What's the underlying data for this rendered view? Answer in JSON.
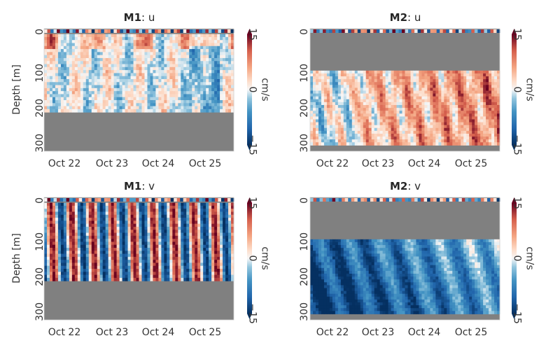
{
  "figure": {
    "palette": {
      "mask": "#808080",
      "neg": "#0b4a8f",
      "mid": "#f7f7f7",
      "pos": "#8a0a1f"
    }
  },
  "chart_data": [
    {
      "type": "heatmap",
      "title_bold": "M1",
      "title_rest": ": u",
      "ylabel": "Depth [m]",
      "x_ticks": [
        "Oct 22",
        "Oct 23",
        "Oct 24",
        "Oct 25"
      ],
      "y_ticks": [
        "0",
        "100",
        "200",
        "300"
      ],
      "ylim": [
        345,
        0
      ],
      "valid_depth": [
        15,
        235
      ],
      "pattern": "weak_u",
      "colorbar": {
        "min": -15,
        "max": 15,
        "ticks": [
          "15",
          "0",
          "−15"
        ],
        "label": "cm/s"
      }
    },
    {
      "type": "heatmap",
      "title_bold": "M2",
      "title_rest": ": u",
      "ylabel": "",
      "x_ticks": [
        "Oct 22",
        "Oct 23",
        "Oct 24",
        "Oct 25"
      ],
      "y_ticks": [
        "0",
        "100",
        "200",
        "300"
      ],
      "ylim": [
        345,
        0
      ],
      "valid_depth": [
        118,
        328
      ],
      "pattern": "pos_u",
      "colorbar": {
        "min": -15,
        "max": 15,
        "ticks": [
          "15",
          "0",
          "−15"
        ],
        "label": "cm/s"
      }
    },
    {
      "type": "heatmap",
      "title_bold": "M1",
      "title_rest": ": v",
      "ylabel": "Depth [m]",
      "x_ticks": [
        "Oct 22",
        "Oct 23",
        "Oct 24",
        "Oct 25"
      ],
      "y_ticks": [
        "0",
        "100",
        "200",
        "300"
      ],
      "ylim": [
        345,
        0
      ],
      "valid_depth": [
        15,
        235
      ],
      "pattern": "stripe_v",
      "colorbar": {
        "min": -15,
        "max": 15,
        "ticks": [
          "15",
          "0",
          "−15"
        ],
        "label": "cm/s"
      }
    },
    {
      "type": "heatmap",
      "title_bold": "M2",
      "title_rest": ": v",
      "ylabel": "",
      "x_ticks": [
        "Oct 22",
        "Oct 23",
        "Oct 24",
        "Oct 25"
      ],
      "y_ticks": [
        "0",
        "100",
        "200",
        "300"
      ],
      "ylim": [
        345,
        0
      ],
      "valid_depth": [
        118,
        328
      ],
      "pattern": "neg_v",
      "colorbar": {
        "min": -15,
        "max": 15,
        "ticks": [
          "15",
          "0",
          "−15"
        ],
        "label": "cm/s"
      }
    }
  ]
}
